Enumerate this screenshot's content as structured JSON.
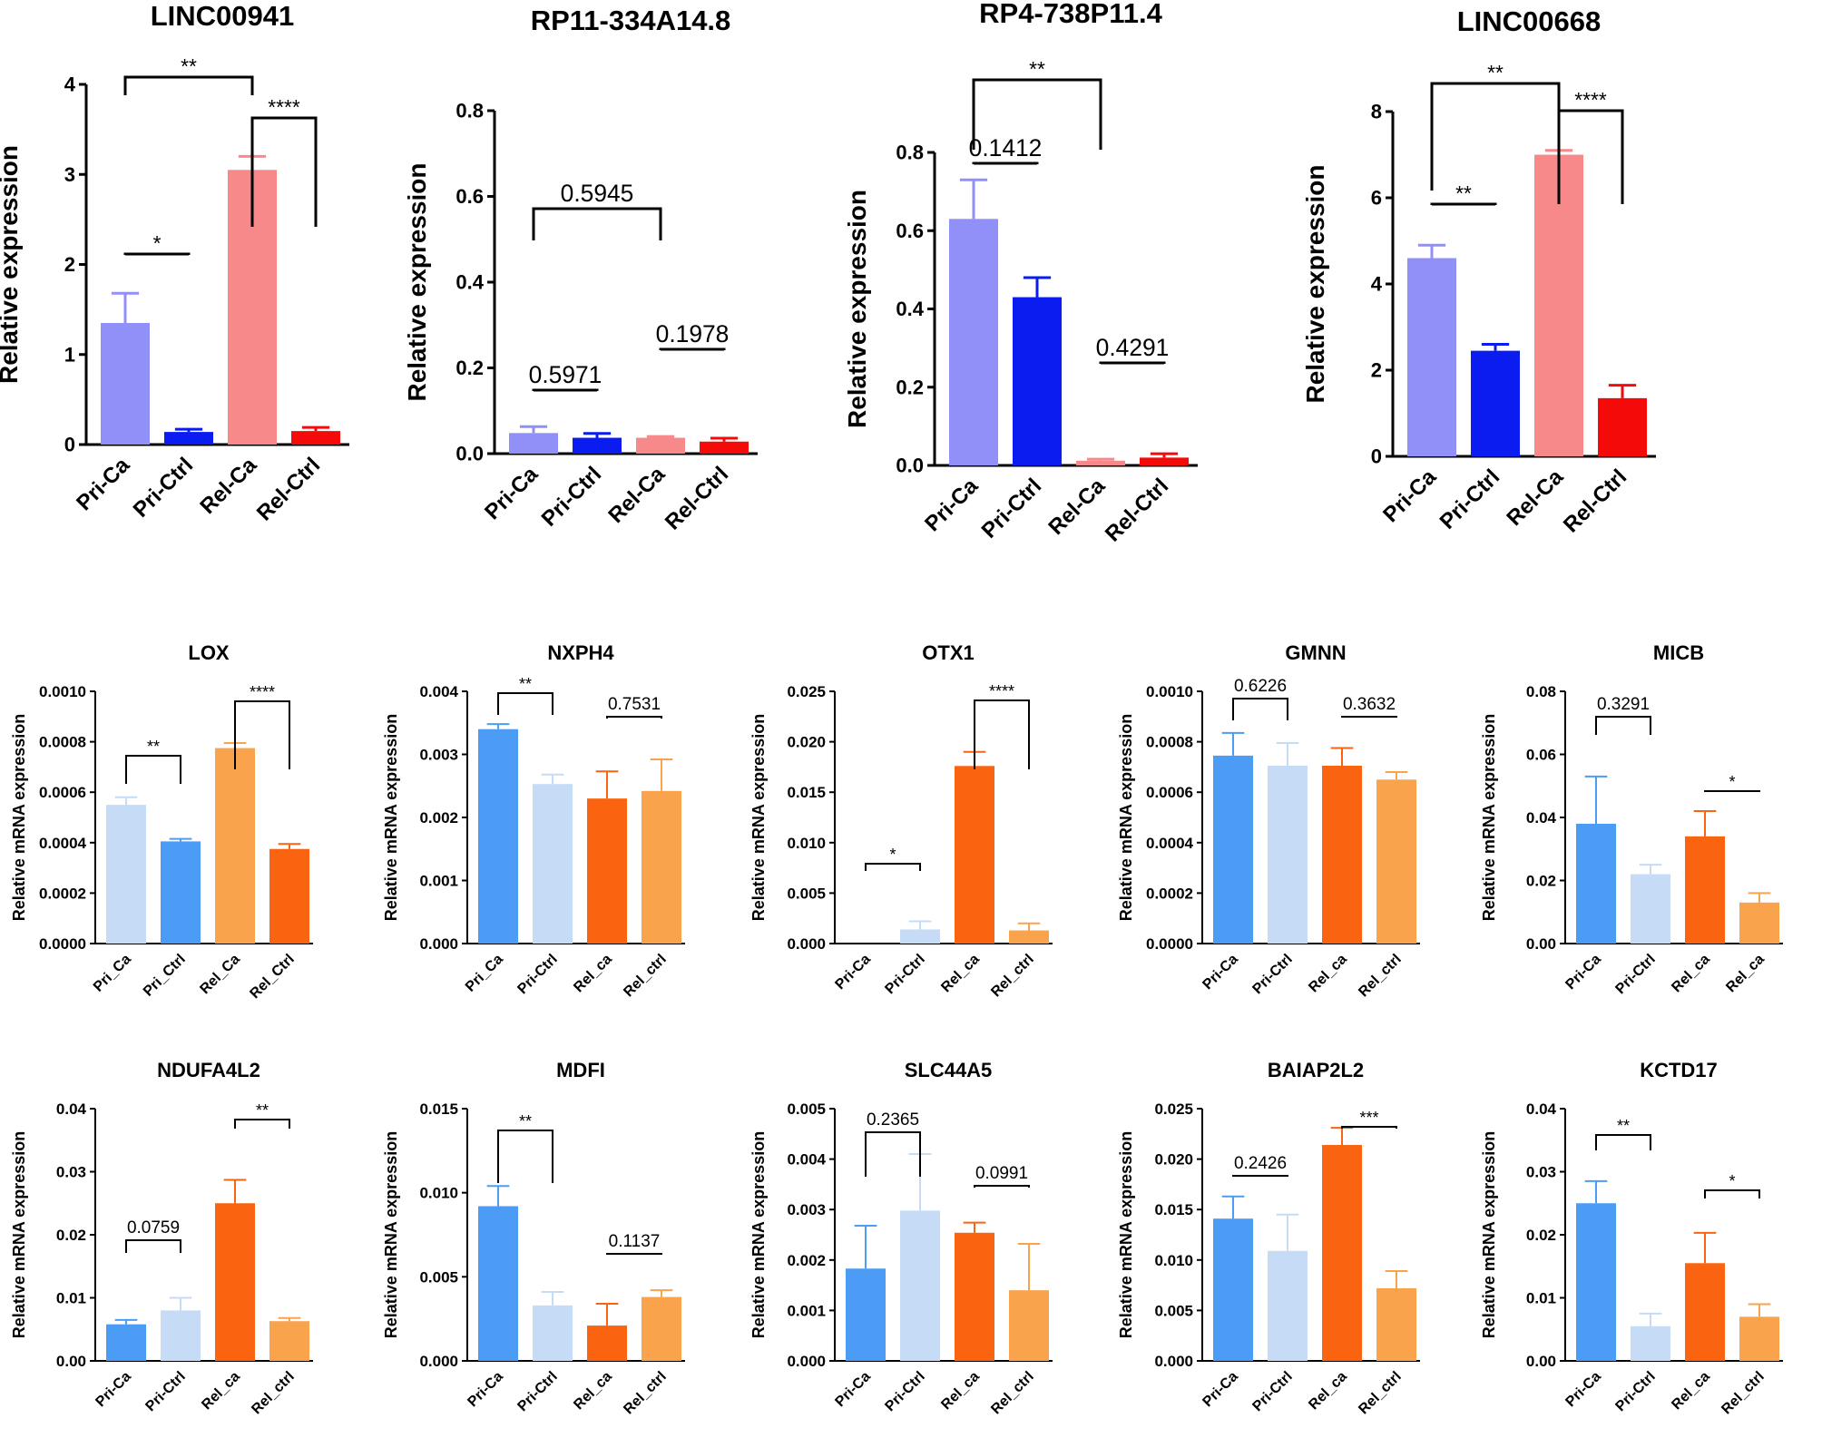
{
  "chart_data": [
    {
      "id": "c1",
      "type": "bar",
      "title": "LINC00941",
      "ylabel": "Relative  expression",
      "ylim": [
        0,
        4
      ],
      "yticks": [
        "0",
        "1",
        "2",
        "3",
        "4"
      ],
      "categories": [
        "Pri-Ca",
        "Pri-Ctrl",
        "Rel-Ca",
        "Rel-Ctrl"
      ],
      "values": [
        1.35,
        0.14,
        3.05,
        0.15
      ],
      "errors": [
        0.33,
        0.03,
        0.15,
        0.04
      ],
      "colors": [
        "#9090f8",
        "#0a1cf0",
        "#f7898b",
        "#f50a0a"
      ],
      "annotations": [
        {
          "from": 0,
          "to": 2,
          "label": "**"
        },
        {
          "from": 2,
          "to": 3,
          "label": "****"
        },
        {
          "from": 0,
          "to": 1,
          "label": "*"
        }
      ]
    },
    {
      "id": "c2",
      "type": "bar",
      "title": "RP11-334A14.8",
      "ylabel": "Relative  expression",
      "ylim": [
        0,
        0.8
      ],
      "yticks": [
        "0.0",
        "0.2",
        "0.4",
        "0.6",
        "0.8"
      ],
      "categories": [
        "Pri-Ca",
        "Pri-Ctrl",
        "Rel-Ca",
        "Rel-Ctrl"
      ],
      "values": [
        0.048,
        0.037,
        0.037,
        0.028
      ],
      "errors": [
        0.015,
        0.01,
        0.003,
        0.008
      ],
      "colors": [
        "#9090f8",
        "#0a1cf0",
        "#f7898b",
        "#f50a0a"
      ],
      "annotations": [
        {
          "from": 0,
          "to": 2,
          "label": "0.5945"
        },
        {
          "from": 2,
          "to": 3,
          "label": "0.1978"
        },
        {
          "from": 0,
          "to": 1,
          "label": "0.5971"
        }
      ]
    },
    {
      "id": "c3",
      "type": "bar",
      "title": "RP4-738P11.4",
      "ylabel": "Relative  expression",
      "ylim": [
        0,
        0.8
      ],
      "yticks": [
        "0.0",
        "0.2",
        "0.4",
        "0.6",
        "0.8"
      ],
      "categories": [
        "Pri-Ca",
        "Pri-Ctrl",
        "Rel-Ca",
        "Rel-Ctrl"
      ],
      "values": [
        0.63,
        0.43,
        0.012,
        0.02
      ],
      "errors": [
        0.1,
        0.05,
        0.004,
        0.01
      ],
      "colors": [
        "#9090f8",
        "#0a1cf0",
        "#f7898b",
        "#f50a0a"
      ],
      "annotations": [
        {
          "from": 0,
          "to": 2,
          "label": "**"
        },
        {
          "from": 0,
          "to": 1,
          "label": "0.1412"
        },
        {
          "from": 2,
          "to": 3,
          "label": "0.4291"
        }
      ]
    },
    {
      "id": "c4",
      "type": "bar",
      "title": "LINC00668",
      "ylabel": "Relative  expression",
      "ylim": [
        0,
        8
      ],
      "yticks": [
        "0",
        "2",
        "4",
        "6",
        "8"
      ],
      "categories": [
        "Pri-Ca",
        "Pri-Ctrl",
        "Rel-Ca",
        "Rel-Ctrl"
      ],
      "values": [
        4.6,
        2.45,
        7.0,
        1.35
      ],
      "errors": [
        0.3,
        0.15,
        0.1,
        0.3
      ],
      "colors": [
        "#9090f8",
        "#0a1cf0",
        "#f7898b",
        "#f50a0a"
      ],
      "annotations": [
        {
          "from": 0,
          "to": 2,
          "label": "**"
        },
        {
          "from": 2,
          "to": 3,
          "label": "****"
        },
        {
          "from": 0,
          "to": 1,
          "label": "**"
        }
      ]
    },
    {
      "id": "c5",
      "type": "bar",
      "title": "LOX",
      "ylabel": "Relative mRNA expression",
      "ylim": [
        0,
        0.001
      ],
      "yticks": [
        "0.0000",
        "0.0002",
        "0.0004",
        "0.0006",
        "0.0008",
        "0.0010"
      ],
      "categories": [
        "Pri_Ca",
        "Pri_Ctrl",
        "Rel_Ca",
        "Rel_Ctrl"
      ],
      "values": [
        0.00055,
        0.000405,
        0.000775,
        0.000375
      ],
      "errors": [
        3e-05,
        1e-05,
        2e-05,
        2e-05
      ],
      "colors": [
        "#c6dcf6",
        "#4c9bf5",
        "#f9a34c",
        "#fa630f"
      ],
      "annotations": [
        {
          "from": 2,
          "to": 3,
          "label": "****"
        },
        {
          "from": 0,
          "to": 1,
          "label": "**"
        }
      ]
    },
    {
      "id": "c6",
      "type": "bar",
      "title": "NXPH4",
      "ylabel": "Relative mRNA expression",
      "ylim": [
        0,
        0.004
      ],
      "yticks": [
        "0.000",
        "0.001",
        "0.002",
        "0.003",
        "0.004"
      ],
      "categories": [
        "Pri_Ca",
        "Pri-Ctrl",
        "Rel_ca",
        "Rel_ctrl"
      ],
      "values": [
        0.0034,
        0.00253,
        0.0023,
        0.00242
      ],
      "errors": [
        8e-05,
        0.00015,
        0.00043,
        0.0005
      ],
      "colors": [
        "#4c9bf5",
        "#c6dcf6",
        "#fa630f",
        "#f9a34c"
      ],
      "annotations": [
        {
          "from": 0,
          "to": 1,
          "label": "**"
        },
        {
          "from": 2,
          "to": 3,
          "label": "0.7531"
        }
      ]
    },
    {
      "id": "c7",
      "type": "bar",
      "title": "OTX1",
      "ylabel": "Relative mRNA expression",
      "ylim": [
        0,
        0.025
      ],
      "yticks": [
        "0.000",
        "0.005",
        "0.010",
        "0.015",
        "0.020",
        "0.025"
      ],
      "categories": [
        "Pri-Ca",
        "Pri-Ctrl",
        "Rel_ca",
        "Rel_ctrl"
      ],
      "values": [
        0.0,
        0.0014,
        0.0176,
        0.0013
      ],
      "errors": [
        0,
        0.0008,
        0.0014,
        0.0007
      ],
      "colors": [
        "#4c9bf5",
        "#c6dcf6",
        "#fa630f",
        "#f9a34c"
      ],
      "annotations": [
        {
          "from": 2,
          "to": 3,
          "label": "****"
        },
        {
          "from": 0,
          "to": 1,
          "label": "*"
        }
      ]
    },
    {
      "id": "c8",
      "type": "bar",
      "title": "GMNN",
      "ylabel": "Relative mRNA expression",
      "ylim": [
        0,
        0.001
      ],
      "yticks": [
        "0.0000",
        "0.0002",
        "0.0004",
        "0.0006",
        "0.0008",
        "0.0010"
      ],
      "categories": [
        "Pri-Ca",
        "Pri-Ctrl",
        "Rel_ca",
        "Rel_ctrl"
      ],
      "values": [
        0.000745,
        0.000705,
        0.000705,
        0.00065
      ],
      "errors": [
        9e-05,
        9e-05,
        7e-05,
        3e-05
      ],
      "colors": [
        "#4c9bf5",
        "#c6dcf6",
        "#fa630f",
        "#f9a34c"
      ],
      "annotations": [
        {
          "from": 0,
          "to": 1,
          "label": "0.6226"
        },
        {
          "from": 2,
          "to": 3,
          "label": "0.3632"
        }
      ]
    },
    {
      "id": "c9",
      "type": "bar",
      "title": "MICB",
      "ylabel": "Relative mRNA expression",
      "ylim": [
        0,
        0.08
      ],
      "yticks": [
        "0.00",
        "0.02",
        "0.04",
        "0.06",
        "0.08"
      ],
      "categories": [
        "Pri-Ca",
        "Pri-Ctrl",
        "Rel_ca",
        "Rel_ca"
      ],
      "values": [
        0.038,
        0.022,
        0.034,
        0.013
      ],
      "errors": [
        0.015,
        0.003,
        0.008,
        0.003
      ],
      "colors": [
        "#4c9bf5",
        "#c6dcf6",
        "#fa630f",
        "#f9a34c"
      ],
      "annotations": [
        {
          "from": 0,
          "to": 1,
          "label": "0.3291"
        },
        {
          "from": 2,
          "to": 3,
          "label": "*"
        }
      ]
    },
    {
      "id": "c10",
      "type": "bar",
      "title": "NDUFA4L2",
      "ylabel": "Relative mRNA expression",
      "ylim": [
        0,
        0.04
      ],
      "yticks": [
        "0.00",
        "0.01",
        "0.02",
        "0.03",
        "0.04"
      ],
      "categories": [
        "Pri-Ca",
        "Pri-Ctrl",
        "Rel_ca",
        "Rel_ctrl"
      ],
      "values": [
        0.0058,
        0.008,
        0.025,
        0.0063
      ],
      "errors": [
        0.0007,
        0.002,
        0.0037,
        0.0005
      ],
      "colors": [
        "#4c9bf5",
        "#c6dcf6",
        "#fa630f",
        "#f9a34c"
      ],
      "annotations": [
        {
          "from": 2,
          "to": 3,
          "label": "**"
        },
        {
          "from": 0,
          "to": 1,
          "label": "0.0759"
        }
      ]
    },
    {
      "id": "c11",
      "type": "bar",
      "title": "MDFI",
      "ylabel": "Relative mRNA expression",
      "ylim": [
        0,
        0.015
      ],
      "yticks": [
        "0.000",
        "0.005",
        "0.010",
        "0.015"
      ],
      "categories": [
        "Pri-Ca",
        "Pri-Ctrl",
        "Rel_ca",
        "Rel_ctrl"
      ],
      "values": [
        0.0092,
        0.0033,
        0.0021,
        0.0038
      ],
      "errors": [
        0.0012,
        0.0008,
        0.0013,
        0.0004
      ],
      "colors": [
        "#4c9bf5",
        "#c6dcf6",
        "#fa630f",
        "#f9a34c"
      ],
      "annotations": [
        {
          "from": 0,
          "to": 1,
          "label": "**"
        },
        {
          "from": 2,
          "to": 3,
          "label": "0.1137"
        }
      ]
    },
    {
      "id": "c12",
      "type": "bar",
      "title": "SLC44A5",
      "ylabel": "Relative mRNA expression",
      "ylim": [
        0,
        0.005
      ],
      "yticks": [
        "0.000",
        "0.001",
        "0.002",
        "0.003",
        "0.004",
        "0.005"
      ],
      "categories": [
        "Pri-Ca",
        "Pri-Ctrl",
        "Rel_ca",
        "Rel_ctrl"
      ],
      "values": [
        0.00183,
        0.00298,
        0.00254,
        0.0014
      ],
      "errors": [
        0.00085,
        0.00112,
        0.0002,
        0.00092
      ],
      "colors": [
        "#4c9bf5",
        "#c6dcf6",
        "#fa630f",
        "#f9a34c"
      ],
      "annotations": [
        {
          "from": 0,
          "to": 1,
          "label": "0.2365"
        },
        {
          "from": 2,
          "to": 3,
          "label": "0.0991"
        }
      ]
    },
    {
      "id": "c13",
      "type": "bar",
      "title": "BAIAP2L2",
      "ylabel": "Relative mRNA expression",
      "ylim": [
        0,
        0.025
      ],
      "yticks": [
        "0.000",
        "0.005",
        "0.010",
        "0.015",
        "0.020",
        "0.025"
      ],
      "categories": [
        "Pri-Ca",
        "Pri-Ctrl",
        "Rel_ca",
        "Rel_ctrl"
      ],
      "values": [
        0.0141,
        0.0109,
        0.0214,
        0.0072
      ],
      "errors": [
        0.0022,
        0.0036,
        0.0017,
        0.0017
      ],
      "colors": [
        "#4c9bf5",
        "#c6dcf6",
        "#fa630f",
        "#f9a34c"
      ],
      "annotations": [
        {
          "from": 2,
          "to": 3,
          "label": "***"
        },
        {
          "from": 0,
          "to": 1,
          "label": "0.2426"
        }
      ]
    },
    {
      "id": "c14",
      "type": "bar",
      "title": "KCTD17",
      "ylabel": "Relative mRNA expression",
      "ylim": [
        0,
        0.04
      ],
      "yticks": [
        "0.00",
        "0.01",
        "0.02",
        "0.03",
        "0.04"
      ],
      "categories": [
        "Pri-Ca",
        "Pri-Ctrl",
        "Rel_ca",
        "Rel_ctrl"
      ],
      "values": [
        0.025,
        0.0055,
        0.0155,
        0.007
      ],
      "errors": [
        0.0035,
        0.002,
        0.0048,
        0.002
      ],
      "colors": [
        "#4c9bf5",
        "#c6dcf6",
        "#fa630f",
        "#f9a34c"
      ],
      "annotations": [
        {
          "from": 0,
          "to": 1,
          "label": "**"
        },
        {
          "from": 2,
          "to": 3,
          "label": "*"
        }
      ]
    }
  ]
}
